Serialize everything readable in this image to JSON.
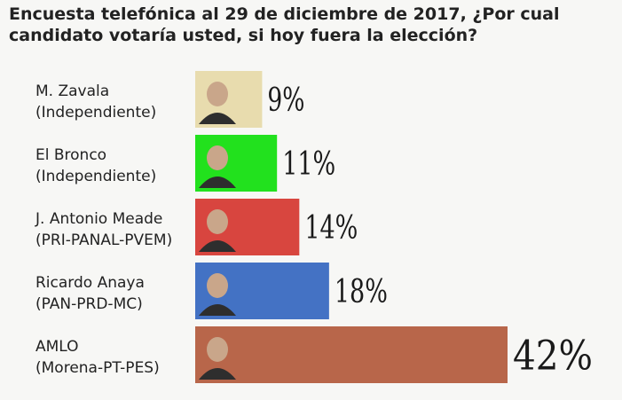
{
  "chart_data": {
    "type": "bar",
    "orientation": "horizontal",
    "title_lines": [
      "Encuesta telefónica al 29 de diciembre de 2017, ¿Por cual",
      "candidato votaría usted, si hoy fuera la elección?"
    ],
    "categories": [
      {
        "name": "M. Zavala",
        "party": "(Independiente)",
        "value": 9,
        "label": "9%",
        "color": "#e8dcae"
      },
      {
        "name": "El Bronco",
        "party": "(Independiente)",
        "value": 11,
        "label": "11%",
        "color": "#22e11e"
      },
      {
        "name": "J. Antonio Meade",
        "party": "(PRI-PANAL-PVEM)",
        "value": 14,
        "label": "14%",
        "color": "#d8463f"
      },
      {
        "name": "Ricardo Anaya",
        "party": "(PAN-PRD-MC)",
        "value": 18,
        "label": "18%",
        "color": "#4472c4"
      },
      {
        "name": "AMLO",
        "party": "(Morena-PT-PES)",
        "value": 42,
        "label": "42%",
        "color": "#b8664a"
      }
    ],
    "xlim": [
      0,
      42
    ],
    "grid": false,
    "legend": "none"
  }
}
